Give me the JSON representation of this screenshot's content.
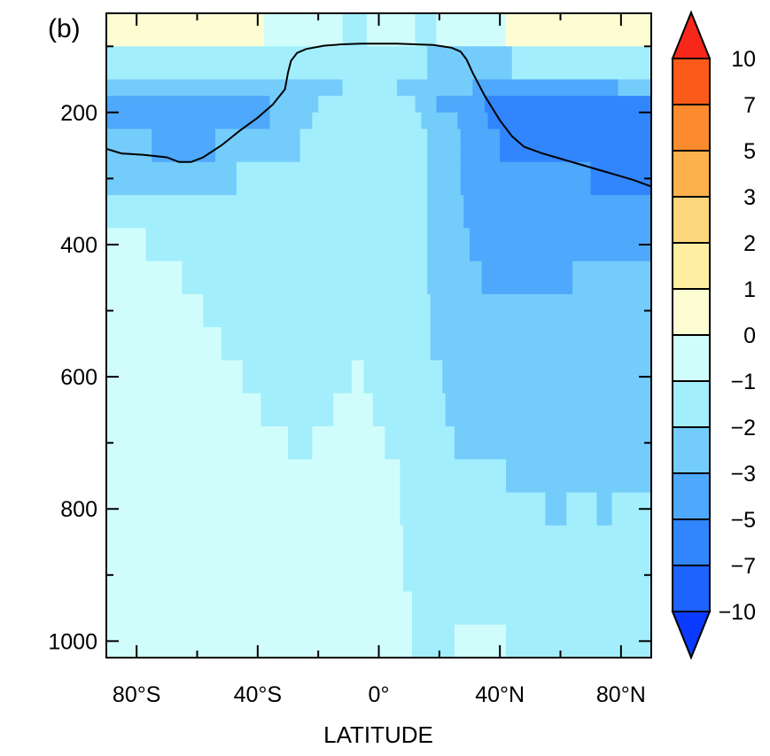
{
  "panel_label": "(b)",
  "chart_data": {
    "type": "heatmap",
    "title": "",
    "xlabel": "LATITUDE",
    "ylabel": "",
    "xlim": [
      -90,
      90
    ],
    "ylim": [
      1025,
      50
    ],
    "y_inverted": true,
    "x_ticks": [
      {
        "value": -80,
        "label": "80°S"
      },
      {
        "value": -40,
        "label": "40°S"
      },
      {
        "value": 0,
        "label": "0°"
      },
      {
        "value": 40,
        "label": "40°N"
      },
      {
        "value": 80,
        "label": "80°N"
      }
    ],
    "x_minor_ticks": [
      -60,
      -20,
      20,
      60
    ],
    "y_ticks": [
      {
        "value": 200,
        "label": "200"
      },
      {
        "value": 400,
        "label": "400"
      },
      {
        "value": 600,
        "label": "600"
      },
      {
        "value": 800,
        "label": "800"
      },
      {
        "value": 1000,
        "label": "1000"
      }
    ],
    "y_minor_ticks": [
      100,
      300,
      500,
      700,
      900
    ],
    "colorbar": {
      "boundaries": [
        -10,
        -7,
        -5,
        -3,
        -2,
        -1,
        0,
        1,
        2,
        3,
        5,
        7,
        10
      ],
      "labels": [
        "−10",
        "−7",
        "−5",
        "−3",
        "−2",
        "−1",
        "0",
        "1",
        "2",
        "3",
        "5",
        "7",
        "10"
      ],
      "colors": [
        "#0a3bff",
        "#1f63ff",
        "#3185fd",
        "#4ea8fb",
        "#74ccfb",
        "#a3eefd",
        "#d0fdfb",
        "#fdfdd4",
        "#feeea2",
        "#fdd57c",
        "#fdb14d",
        "#fb8b2e",
        "#fa5b1a",
        "#f7281a"
      ],
      "under_color": "#0a3bff",
      "over_color": "#f7281a",
      "extend": "both"
    },
    "levels": [
      {
        "pressure": [
          50,
          100
        ],
        "cells": [
          {
            "lat": [
              -90,
              -38
            ],
            "color": "#fdfdd4"
          },
          {
            "lat": [
              -38,
              -12
            ],
            "color": "#d0fdfb"
          },
          {
            "lat": [
              -12,
              -4
            ],
            "color": "#a3eefd"
          },
          {
            "lat": [
              -4,
              12
            ],
            "color": "#d0fdfb"
          },
          {
            "lat": [
              12,
              19
            ],
            "color": "#a3eefd"
          },
          {
            "lat": [
              19,
              42
            ],
            "color": "#d0fdfb"
          },
          {
            "lat": [
              42,
              90
            ],
            "color": "#fdfdd4"
          }
        ]
      },
      {
        "pressure": [
          100,
          150
        ],
        "cells": [
          {
            "lat": [
              -90,
              16
            ],
            "color": "#a3eefd"
          },
          {
            "lat": [
              16,
              31
            ],
            "color": "#74ccfb"
          },
          {
            "lat": [
              31,
              44
            ],
            "color": "#74ccfb"
          },
          {
            "lat": [
              44,
              90
            ],
            "color": "#a3eefd"
          }
        ]
      },
      {
        "pressure": [
          150,
          175
        ],
        "cells": [
          {
            "lat": [
              -90,
              -12
            ],
            "color": "#74ccfb"
          },
          {
            "lat": [
              -12,
              6
            ],
            "color": "#a3eefd"
          },
          {
            "lat": [
              6,
              31
            ],
            "color": "#74ccfb"
          },
          {
            "lat": [
              31,
              79
            ],
            "color": "#4ea8fb"
          },
          {
            "lat": [
              79,
              90
            ],
            "color": "#74ccfb"
          }
        ]
      },
      {
        "pressure": [
          175,
          200
        ],
        "cells": [
          {
            "lat": [
              -90,
              -36
            ],
            "color": "#4ea8fb"
          },
          {
            "lat": [
              -36,
              -20
            ],
            "color": "#74ccfb"
          },
          {
            "lat": [
              -20,
              12
            ],
            "color": "#a3eefd"
          },
          {
            "lat": [
              12,
              19
            ],
            "color": "#74ccfb"
          },
          {
            "lat": [
              19,
              35
            ],
            "color": "#4ea8fb"
          },
          {
            "lat": [
              35,
              90
            ],
            "color": "#3185fd"
          }
        ]
      },
      {
        "pressure": [
          200,
          225
        ],
        "cells": [
          {
            "lat": [
              -90,
              -36
            ],
            "color": "#4ea8fb"
          },
          {
            "lat": [
              -36,
              -22
            ],
            "color": "#74ccfb"
          },
          {
            "lat": [
              -22,
              14
            ],
            "color": "#a3eefd"
          },
          {
            "lat": [
              14,
              26
            ],
            "color": "#74ccfb"
          },
          {
            "lat": [
              26,
              36
            ],
            "color": "#4ea8fb"
          },
          {
            "lat": [
              36,
              90
            ],
            "color": "#3185fd"
          }
        ]
      },
      {
        "pressure": [
          225,
          250
        ],
        "cells": [
          {
            "lat": [
              -90,
              -75
            ],
            "color": "#74ccfb"
          },
          {
            "lat": [
              -75,
              -54
            ],
            "color": "#4ea8fb"
          },
          {
            "lat": [
              -54,
              -26
            ],
            "color": "#74ccfb"
          },
          {
            "lat": [
              -26,
              16
            ],
            "color": "#a3eefd"
          },
          {
            "lat": [
              16,
              27
            ],
            "color": "#74ccfb"
          },
          {
            "lat": [
              27,
              40
            ],
            "color": "#4ea8fb"
          },
          {
            "lat": [
              40,
              90
            ],
            "color": "#3185fd"
          }
        ]
      },
      {
        "pressure": [
          250,
          275
        ],
        "cells": [
          {
            "lat": [
              -90,
              -75
            ],
            "color": "#74ccfb"
          },
          {
            "lat": [
              -75,
              -54
            ],
            "color": "#4ea8fb"
          },
          {
            "lat": [
              -54,
              -26
            ],
            "color": "#74ccfb"
          },
          {
            "lat": [
              -26,
              16
            ],
            "color": "#a3eefd"
          },
          {
            "lat": [
              16,
              27
            ],
            "color": "#74ccfb"
          },
          {
            "lat": [
              27,
              40
            ],
            "color": "#4ea8fb"
          },
          {
            "lat": [
              40,
              90
            ],
            "color": "#3185fd"
          }
        ]
      },
      {
        "pressure": [
          275,
          325
        ],
        "cells": [
          {
            "lat": [
              -90,
              -65
            ],
            "color": "#74ccfb"
          },
          {
            "lat": [
              -65,
              -47
            ],
            "color": "#74ccfb"
          },
          {
            "lat": [
              -47,
              16
            ],
            "color": "#a3eefd"
          },
          {
            "lat": [
              16,
              27
            ],
            "color": "#74ccfb"
          },
          {
            "lat": [
              27,
              70
            ],
            "color": "#4ea8fb"
          },
          {
            "lat": [
              70,
              90
            ],
            "color": "#3185fd"
          }
        ]
      },
      {
        "pressure": [
          325,
          375
        ],
        "cells": [
          {
            "lat": [
              -90,
              16
            ],
            "color": "#a3eefd"
          },
          {
            "lat": [
              16,
              28
            ],
            "color": "#74ccfb"
          },
          {
            "lat": [
              28,
              90
            ],
            "color": "#4ea8fb"
          }
        ]
      },
      {
        "pressure": [
          375,
          425
        ],
        "cells": [
          {
            "lat": [
              -90,
              -77
            ],
            "color": "#d0fdfb"
          },
          {
            "lat": [
              -77,
              16
            ],
            "color": "#a3eefd"
          },
          {
            "lat": [
              16,
              30
            ],
            "color": "#74ccfb"
          },
          {
            "lat": [
              30,
              90
            ],
            "color": "#4ea8fb"
          }
        ]
      },
      {
        "pressure": [
          425,
          475
        ],
        "cells": [
          {
            "lat": [
              -90,
              -65
            ],
            "color": "#d0fdfb"
          },
          {
            "lat": [
              -65,
              16
            ],
            "color": "#a3eefd"
          },
          {
            "lat": [
              16,
              34
            ],
            "color": "#74ccfb"
          },
          {
            "lat": [
              34,
              64
            ],
            "color": "#4ea8fb"
          },
          {
            "lat": [
              64,
              90
            ],
            "color": "#74ccfb"
          }
        ]
      },
      {
        "pressure": [
          475,
          525
        ],
        "cells": [
          {
            "lat": [
              -90,
              -58
            ],
            "color": "#d0fdfb"
          },
          {
            "lat": [
              -58,
              17
            ],
            "color": "#a3eefd"
          },
          {
            "lat": [
              17,
              90
            ],
            "color": "#74ccfb"
          }
        ]
      },
      {
        "pressure": [
          525,
          575
        ],
        "cells": [
          {
            "lat": [
              -90,
              -52
            ],
            "color": "#d0fdfb"
          },
          {
            "lat": [
              -52,
              17
            ],
            "color": "#a3eefd"
          },
          {
            "lat": [
              17,
              90
            ],
            "color": "#74ccfb"
          }
        ]
      },
      {
        "pressure": [
          575,
          625
        ],
        "cells": [
          {
            "lat": [
              -90,
              -45
            ],
            "color": "#d0fdfb"
          },
          {
            "lat": [
              -45,
              -9
            ],
            "color": "#a3eefd"
          },
          {
            "lat": [
              -9,
              -5
            ],
            "color": "#d0fdfb"
          },
          {
            "lat": [
              -5,
              21
            ],
            "color": "#a3eefd"
          },
          {
            "lat": [
              21,
              90
            ],
            "color": "#74ccfb"
          }
        ]
      },
      {
        "pressure": [
          625,
          675
        ],
        "cells": [
          {
            "lat": [
              -90,
              -39
            ],
            "color": "#d0fdfb"
          },
          {
            "lat": [
              -39,
              -15
            ],
            "color": "#a3eefd"
          },
          {
            "lat": [
              -15,
              -2
            ],
            "color": "#d0fdfb"
          },
          {
            "lat": [
              -2,
              22
            ],
            "color": "#a3eefd"
          },
          {
            "lat": [
              22,
              90
            ],
            "color": "#74ccfb"
          }
        ]
      },
      {
        "pressure": [
          675,
          725
        ],
        "cells": [
          {
            "lat": [
              -90,
              -30
            ],
            "color": "#d0fdfb"
          },
          {
            "lat": [
              -30,
              -22
            ],
            "color": "#a3eefd"
          },
          {
            "lat": [
              -22,
              2
            ],
            "color": "#d0fdfb"
          },
          {
            "lat": [
              2,
              25
            ],
            "color": "#a3eefd"
          },
          {
            "lat": [
              25,
              90
            ],
            "color": "#74ccfb"
          }
        ]
      },
      {
        "pressure": [
          725,
          775
        ],
        "cells": [
          {
            "lat": [
              -90,
              7
            ],
            "color": "#d0fdfb"
          },
          {
            "lat": [
              7,
              42
            ],
            "color": "#a3eefd"
          },
          {
            "lat": [
              42,
              90
            ],
            "color": "#74ccfb"
          }
        ]
      },
      {
        "pressure": [
          775,
          825
        ],
        "cells": [
          {
            "lat": [
              -90,
              7
            ],
            "color": "#d0fdfb"
          },
          {
            "lat": [
              7,
              55
            ],
            "color": "#a3eefd"
          },
          {
            "lat": [
              55,
              62
            ],
            "color": "#74ccfb"
          },
          {
            "lat": [
              62,
              72
            ],
            "color": "#a3eefd"
          },
          {
            "lat": [
              72,
              77
            ],
            "color": "#74ccfb"
          },
          {
            "lat": [
              77,
              90
            ],
            "color": "#a3eefd"
          }
        ]
      },
      {
        "pressure": [
          825,
          875
        ],
        "cells": [
          {
            "lat": [
              -90,
              8
            ],
            "color": "#d0fdfb"
          },
          {
            "lat": [
              8,
              90
            ],
            "color": "#a3eefd"
          }
        ]
      },
      {
        "pressure": [
          875,
          925
        ],
        "cells": [
          {
            "lat": [
              -90,
              8
            ],
            "color": "#d0fdfb"
          },
          {
            "lat": [
              8,
              90
            ],
            "color": "#a3eefd"
          }
        ]
      },
      {
        "pressure": [
          925,
          975
        ],
        "cells": [
          {
            "lat": [
              -90,
              11
            ],
            "color": "#d0fdfb"
          },
          {
            "lat": [
              11,
              90
            ],
            "color": "#a3eefd"
          }
        ]
      },
      {
        "pressure": [
          975,
          1025
        ],
        "cells": [
          {
            "lat": [
              -90,
              11
            ],
            "color": "#d0fdfb"
          },
          {
            "lat": [
              11,
              25
            ],
            "color": "#a3eefd"
          },
          {
            "lat": [
              25,
              42
            ],
            "color": "#d0fdfb"
          },
          {
            "lat": [
              42,
              90
            ],
            "color": "#a3eefd"
          }
        ]
      }
    ],
    "tropopause_line": {
      "lat": [
        -90,
        -85,
        -78,
        -70,
        -66,
        -62,
        -58,
        -52,
        -46,
        -40,
        -35,
        -31,
        -30,
        -29,
        -27,
        -24,
        -18,
        -12,
        -6,
        0,
        6,
        12,
        18,
        24,
        27,
        29,
        31,
        35,
        40,
        44,
        48,
        54,
        60,
        66,
        72,
        78,
        84,
        90
      ],
      "pressure": [
        255,
        262,
        264,
        268,
        275,
        275,
        268,
        250,
        228,
        208,
        188,
        165,
        140,
        122,
        110,
        104,
        99,
        97,
        96,
        96,
        96,
        97,
        98,
        102,
        108,
        120,
        140,
        175,
        212,
        236,
        252,
        262,
        270,
        278,
        286,
        294,
        302,
        312
      ]
    }
  }
}
